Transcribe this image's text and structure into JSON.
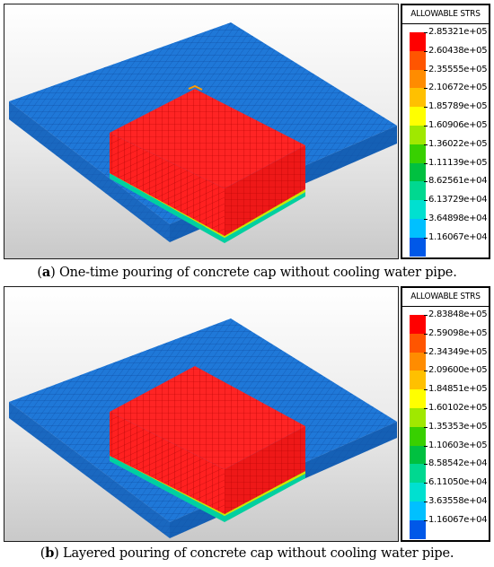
{
  "panels": [
    {
      "legend_title": "ALLOWABLE STRS",
      "legend_values": [
        "2.85321e+05",
        "2.60438e+05",
        "2.35555e+05",
        "2.10672e+05",
        "1.85789e+05",
        "1.60906e+05",
        "1.36022e+05",
        "1.11139e+05",
        "8.62561e+04",
        "6.13729e+04",
        "3.64898e+04",
        "1.16067e+04"
      ],
      "caption_letter": "a",
      "caption_text": "One-time pouring of concrete cap without cooling water pipe."
    },
    {
      "legend_title": "ALLOWABLE STRS",
      "legend_values": [
        "2.83848e+05",
        "2.59098e+05",
        "2.34349e+05",
        "2.09600e+05",
        "1.84851e+05",
        "1.60102e+05",
        "1.35353e+05",
        "1.10603e+05",
        "8.58542e+04",
        "6.11050e+04",
        "3.63558e+04",
        "1.16067e+04"
      ],
      "caption_letter": "b",
      "caption_text": "Layered pouring of concrete cap without cooling water pipe."
    }
  ],
  "colors": {
    "scale": [
      "#ff0000",
      "#ff5500",
      "#ff8c00",
      "#ffc000",
      "#ffff00",
      "#a0e800",
      "#38d000",
      "#00c040",
      "#00d890",
      "#00e0d0",
      "#00c0ff",
      "#0058e8"
    ],
    "mesh_blue": "#1f78d8",
    "mesh_red": "#ff2020"
  }
}
